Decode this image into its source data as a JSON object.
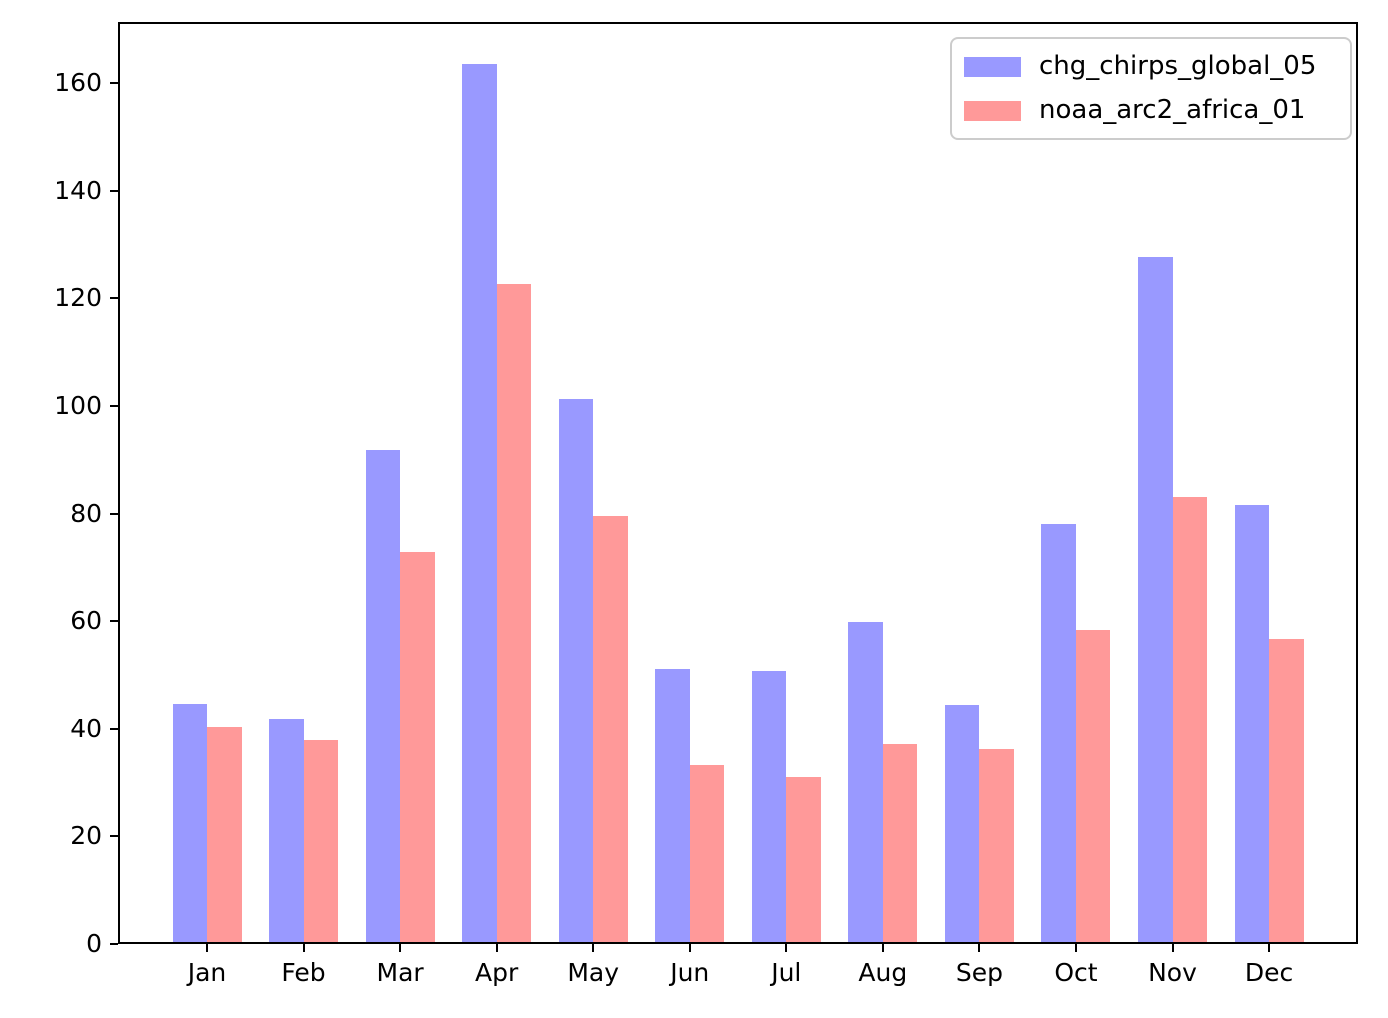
{
  "chart_data": {
    "type": "bar",
    "title": "",
    "xlabel": "",
    "ylabel": "",
    "categories": [
      "Jan",
      "Feb",
      "Mar",
      "Apr",
      "May",
      "Jun",
      "Jul",
      "Aug",
      "Sep",
      "Oct",
      "Nov",
      "Dec"
    ],
    "series": [
      {
        "name": "chg_chirps_global_05",
        "color": "#9999ff",
        "values": [
          44.3,
          41.5,
          91.5,
          163.3,
          101.0,
          50.7,
          50.3,
          59.5,
          44.0,
          77.7,
          127.3,
          81.2
        ]
      },
      {
        "name": "noaa_arc2_africa_01",
        "color": "#ff9999",
        "values": [
          39.9,
          37.5,
          72.6,
          122.4,
          79.2,
          32.9,
          30.7,
          36.9,
          35.8,
          58.1,
          82.7,
          56.3
        ]
      }
    ],
    "yticks": [
      0,
      20,
      40,
      60,
      80,
      100,
      120,
      140,
      160
    ],
    "ylim": [
      0,
      171.4
    ],
    "grid": false,
    "legend_position": "upper right",
    "axis_color": "#000000",
    "background_color": "#ffffff"
  }
}
